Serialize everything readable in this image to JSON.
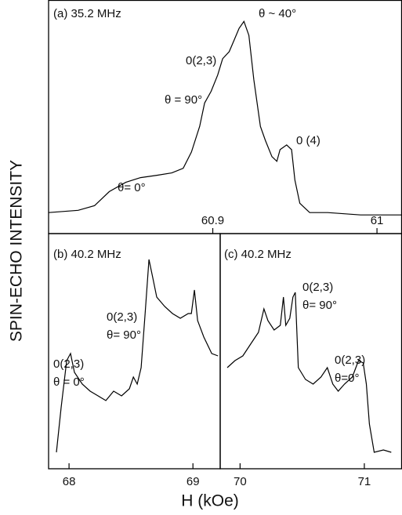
{
  "figure": {
    "ylabel": "SPIN-ECHO INTENSITY",
    "xlabel": "H (kOe)"
  },
  "chart_data": [
    {
      "type": "line",
      "title": "(a) 35.2 MHz",
      "color": "#000000",
      "x": [
        60.8,
        60.818,
        60.828,
        60.837,
        60.847,
        60.856,
        60.866,
        60.875,
        60.882,
        60.887,
        60.892,
        60.895,
        60.899,
        60.903,
        60.906,
        60.91,
        60.913,
        60.916,
        60.919,
        60.922,
        60.925,
        60.929,
        60.932,
        60.936,
        60.939,
        60.941,
        60.945,
        60.948,
        60.95,
        60.953,
        60.959,
        60.97,
        60.99,
        61.015
      ],
      "values": [
        9,
        10,
        12,
        18,
        22,
        24,
        25,
        26,
        28,
        35,
        46,
        56,
        61,
        68,
        75,
        78,
        83,
        88,
        91,
        85,
        66,
        46,
        40,
        33,
        31,
        36,
        38,
        36,
        23,
        13,
        9,
        9,
        8,
        8
      ],
      "xlim": [
        60.8,
        61.015
      ],
      "xticks": [
        60.9,
        61.0
      ],
      "ylim": [
        0,
        100
      ],
      "annotations": [
        "θ ~ 40°",
        "0(2,3)",
        "θ = 90°",
        "0 (4)",
        "θ= 0°"
      ]
    },
    {
      "type": "line",
      "title": "(b) 40.2 MHz",
      "color": "#000000",
      "x": [
        67.898,
        67.936,
        67.981,
        68.012,
        68.044,
        68.107,
        68.17,
        68.234,
        68.297,
        68.36,
        68.424,
        68.487,
        68.519,
        68.55,
        68.582,
        68.614,
        68.645,
        68.677,
        68.708,
        68.772,
        68.835,
        68.898,
        68.962,
        68.987,
        69.012,
        69.038,
        69.088,
        69.152,
        69.202
      ],
      "values": [
        7,
        26,
        46,
        49,
        41,
        36,
        33,
        31,
        29,
        33,
        31,
        34,
        39,
        36,
        43,
        66,
        89,
        81,
        73,
        69,
        66,
        64,
        66,
        66,
        76,
        63,
        56,
        49,
        48
      ],
      "xlim": [
        67.835,
        69.22
      ],
      "xticks": [
        68,
        69
      ],
      "ylim": [
        0,
        100
      ],
      "annotations": [
        "0(2,3)",
        "θ= 90°",
        "0(2,3)",
        "θ = 0°"
      ]
    },
    {
      "type": "line",
      "title": "(c) 40.2 MHz",
      "color": "#000000",
      "x": [
        69.897,
        69.959,
        70.022,
        70.085,
        70.148,
        70.192,
        70.224,
        70.274,
        70.324,
        70.349,
        70.368,
        70.4,
        70.425,
        70.444,
        70.469,
        70.526,
        70.588,
        70.651,
        70.702,
        70.746,
        70.79,
        70.84,
        70.903,
        70.953,
        70.991,
        71.016,
        71.041,
        71.079,
        71.154,
        71.217
      ],
      "values": [
        43,
        46,
        48,
        53,
        58,
        68,
        63,
        59,
        61,
        73,
        61,
        64,
        73,
        75,
        43,
        38,
        36,
        39,
        43,
        36,
        33,
        36,
        39,
        46,
        45,
        36,
        19,
        7,
        8,
        7
      ],
      "xlim": [
        69.84,
        71.3
      ],
      "xticks": [
        70,
        71
      ],
      "ylim": [
        0,
        100
      ],
      "annotations": [
        "0(2,3)",
        "θ= 90°",
        "0(2,3)",
        "θ=0°"
      ]
    }
  ]
}
